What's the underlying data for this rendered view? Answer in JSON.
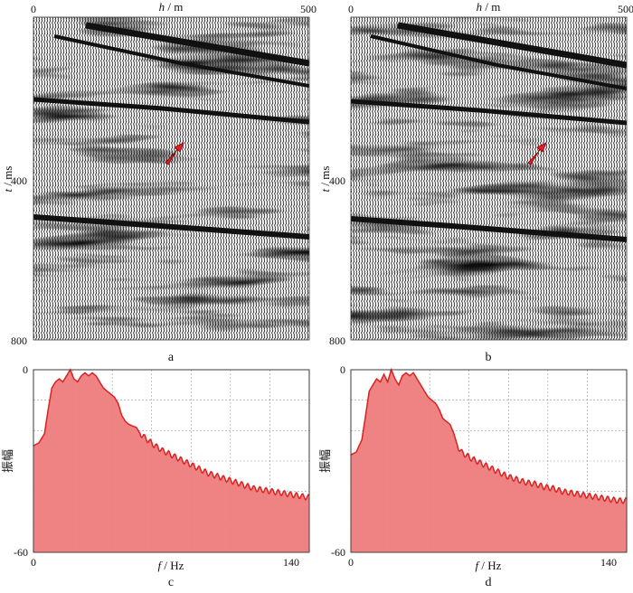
{
  "figure": {
    "panel_labels": [
      "a",
      "b",
      "c",
      "d"
    ]
  },
  "seismic": {
    "x_label_var": "h",
    "x_label_unit": " / m",
    "y_label_var": "t",
    "y_label_unit": " / ms",
    "x_ticks": [
      "0",
      "500"
    ],
    "y_ticks": [
      "400",
      "800"
    ]
  },
  "spectra": {
    "x_label_var": "f",
    "x_label_unit": " / Hz",
    "y_label": "振幅",
    "x_ticks": [
      "0",
      "140"
    ],
    "y_ticks": [
      "0",
      "-60"
    ],
    "fill_color": "#ee7b7b",
    "line_color": "#dd2020"
  },
  "colors": {
    "arrow": "#e21e2a",
    "trace_dark": "#111111",
    "trace_light": "#ffffff"
  },
  "chart_data": [
    {
      "panel": "a",
      "type": "heatmap",
      "xlabel": "h / m",
      "ylabel": "t / ms",
      "xlim": [
        0,
        500
      ],
      "ylim": [
        0,
        800
      ],
      "annotations": [
        {
          "type": "arrow",
          "x": 245,
          "y": 330
        }
      ]
    },
    {
      "panel": "b",
      "type": "heatmap",
      "xlabel": "h / m",
      "ylabel": "t / ms",
      "xlim": [
        0,
        500
      ],
      "ylim": [
        0,
        800
      ],
      "annotations": [
        {
          "type": "arrow",
          "x": 335,
          "y": 330
        }
      ]
    },
    {
      "panel": "c",
      "type": "area",
      "xlabel": "f / Hz",
      "ylabel": "振幅",
      "xlim": [
        0,
        150
      ],
      "ylim": [
        -60,
        0
      ],
      "x": [
        0,
        3,
        6,
        8,
        10,
        12,
        14,
        16,
        18,
        20,
        22,
        24,
        26,
        28,
        30,
        32,
        34,
        36,
        38,
        40,
        42,
        44,
        46,
        48,
        50,
        52,
        54,
        56,
        58,
        60,
        65,
        70,
        75,
        80,
        85,
        90,
        95,
        100,
        105,
        110,
        115,
        120,
        125,
        130,
        135,
        140,
        145,
        150
      ],
      "y": [
        -25,
        -24,
        -21,
        -13,
        -6,
        -4,
        -3,
        -4,
        -2,
        0,
        -3,
        -4,
        -2,
        -1,
        -2,
        -1,
        -2,
        -4,
        -6,
        -7,
        -8,
        -9,
        -11,
        -15,
        -17,
        -18,
        -18.5,
        -19,
        -21,
        -22,
        -24.5,
        -26.5,
        -28,
        -29.5,
        -31,
        -32.5,
        -34,
        -35,
        -36,
        -37,
        -38,
        -39,
        -39.5,
        -40,
        -40.5,
        -41,
        -41.5,
        -42
      ]
    },
    {
      "panel": "d",
      "type": "area",
      "xlabel": "f / Hz",
      "ylabel": "振幅",
      "xlim": [
        0,
        150
      ],
      "ylim": [
        -60,
        0
      ],
      "x": [
        0,
        3,
        6,
        8,
        10,
        12,
        14,
        16,
        18,
        20,
        22,
        24,
        26,
        28,
        30,
        32,
        34,
        36,
        38,
        40,
        42,
        44,
        46,
        48,
        50,
        52,
        54,
        56,
        58,
        60,
        65,
        70,
        75,
        80,
        85,
        90,
        95,
        100,
        105,
        110,
        115,
        120,
        125,
        130,
        135,
        140,
        145,
        150
      ],
      "y": [
        -28,
        -27,
        -23,
        -15,
        -7,
        -5,
        -3,
        -4,
        -1.5,
        -4,
        0,
        -3,
        -5,
        -2,
        -1,
        -2,
        -1,
        -3,
        -5,
        -7,
        -9,
        -10,
        -11,
        -13,
        -16,
        -17,
        -18,
        -21,
        -25,
        -27,
        -29,
        -30.5,
        -32,
        -33.5,
        -35,
        -36,
        -37,
        -37.5,
        -38.5,
        -39,
        -40,
        -40.5,
        -41,
        -41.5,
        -42,
        -42.5,
        -43,
        -43
      ]
    }
  ]
}
